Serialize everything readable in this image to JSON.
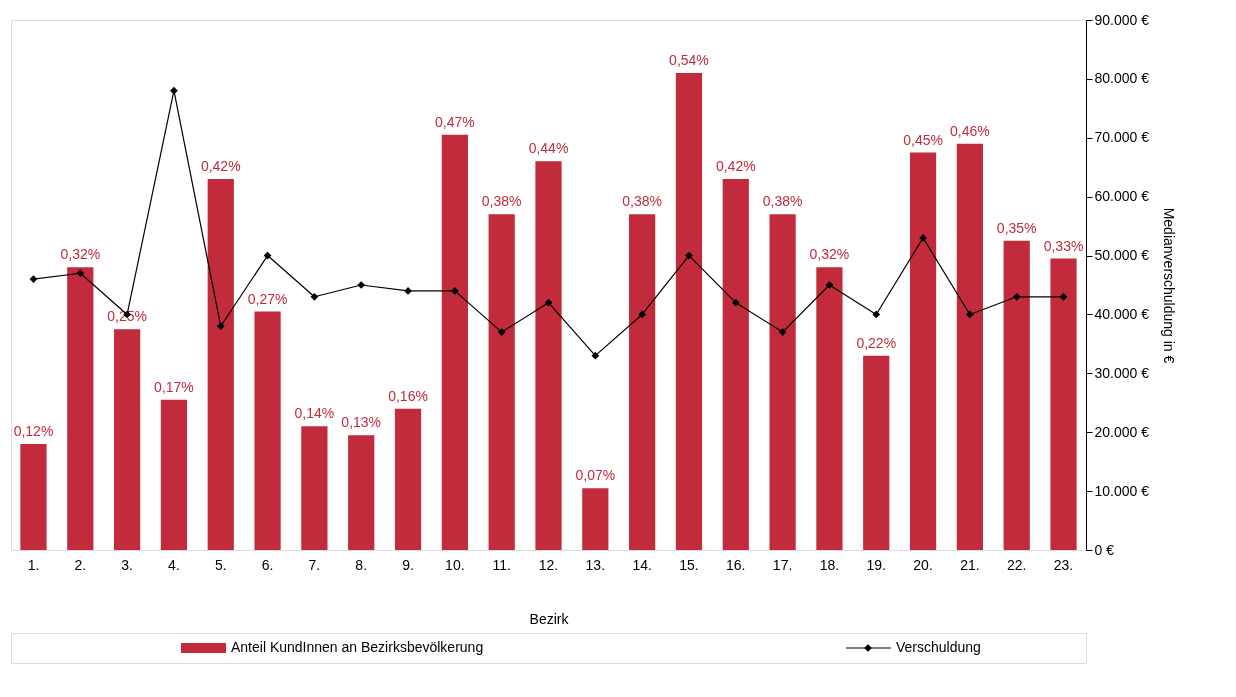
{
  "chart_data": {
    "type": "bar",
    "xlabel": "Bezirk",
    "y2label": "Medianverschuldung in €",
    "categories": [
      "1.",
      "2.",
      "3.",
      "4.",
      "5.",
      "6.",
      "7.",
      "8.",
      "9.",
      "10.",
      "11.",
      "12.",
      "13.",
      "14.",
      "15.",
      "16.",
      "17.",
      "18.",
      "19.",
      "20.",
      "21.",
      "22.",
      "23."
    ],
    "ylim": [
      0,
      0.6
    ],
    "y2lim": [
      0,
      90000
    ],
    "y2ticks": [
      {
        "value": 0,
        "label": "0 €"
      },
      {
        "value": 10000,
        "label": "10.000 €"
      },
      {
        "value": 20000,
        "label": "20.000 €"
      },
      {
        "value": 30000,
        "label": "30.000 €"
      },
      {
        "value": 40000,
        "label": "40.000 €"
      },
      {
        "value": 50000,
        "label": "50.000 €"
      },
      {
        "value": 60000,
        "label": "60.000 €"
      },
      {
        "value": 70000,
        "label": "70.000 €"
      },
      {
        "value": 80000,
        "label": "80.000 €"
      },
      {
        "value": 90000,
        "label": "90.000 €"
      }
    ],
    "series": [
      {
        "name": "Anteil KundInnen an Bezirksbevölkerung",
        "color": "#c22b3b",
        "values": [
          0.12,
          0.32,
          0.25,
          0.17,
          0.42,
          0.27,
          0.14,
          0.13,
          0.16,
          0.47,
          0.38,
          0.44,
          0.07,
          0.38,
          0.54,
          0.42,
          0.38,
          0.32,
          0.22,
          0.45,
          0.46,
          0.35,
          0.33
        ],
        "value_labels": [
          "0,12%",
          "0,32%",
          "0,25%",
          "0,17%",
          "0,42%",
          "0,27%",
          "0,14%",
          "0,13%",
          "0,16%",
          "0,47%",
          "0,38%",
          "0,44%",
          "0,07%",
          "0,38%",
          "0,54%",
          "0,42%",
          "0,38%",
          "0,32%",
          "0,22%",
          "0,45%",
          "0,46%",
          "0,35%",
          "0,33%"
        ]
      },
      {
        "name": "Verschuldung",
        "type": "line",
        "axis": "y2",
        "color": "#000000",
        "marker": "diamond",
        "values": [
          46000,
          47000,
          40000,
          78000,
          38000,
          50000,
          43000,
          45000,
          44000,
          44000,
          37000,
          42000,
          33000,
          40000,
          50000,
          42000,
          37000,
          45000,
          40000,
          53000,
          40000,
          43000,
          43000
        ]
      }
    ],
    "grid": false,
    "legend": "bottom"
  }
}
